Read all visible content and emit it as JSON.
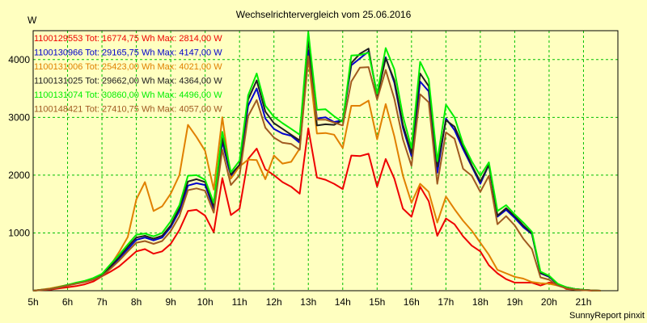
{
  "chart_data": {
    "type": "line",
    "title": "Wechselrichtervergleich vom 25.06.2016",
    "ylabel": "W",
    "xlabel": "",
    "footer": "SunnyReport pinxit",
    "ylim": [
      0,
      4500
    ],
    "xlim": [
      5,
      22
    ],
    "grid": true,
    "legend_position": "top-left",
    "y_ticks": [
      "1000",
      "2000",
      "3000",
      "4000"
    ],
    "y_tick_values": [
      1000,
      2000,
      3000,
      4000
    ],
    "x_ticks": [
      "5h",
      "6h",
      "7h",
      "8h",
      "9h",
      "10h",
      "11h",
      "12h",
      "13h",
      "14h",
      "15h",
      "16h",
      "17h",
      "18h",
      "19h",
      "20h",
      "21h"
    ],
    "x_tick_values": [
      5,
      6,
      7,
      8,
      9,
      10,
      11,
      12,
      13,
      14,
      15,
      16,
      17,
      18,
      19,
      20,
      21
    ],
    "x": [
      5,
      5.25,
      5.5,
      5.75,
      6,
      6.25,
      6.5,
      6.75,
      7,
      7.25,
      7.5,
      7.75,
      8,
      8.25,
      8.5,
      8.75,
      9,
      9.25,
      9.5,
      9.75,
      10,
      10.25,
      10.5,
      10.75,
      11,
      11.25,
      11.5,
      11.75,
      12,
      12.25,
      12.5,
      12.75,
      13,
      13.25,
      13.5,
      13.75,
      14,
      14.25,
      14.5,
      14.75,
      15,
      15.25,
      15.5,
      15.75,
      16,
      16.25,
      16.5,
      16.75,
      17,
      17.25,
      17.5,
      17.75,
      18,
      18.25,
      18.5,
      18.75,
      19,
      19.25,
      19.5,
      19.75,
      20,
      20.25,
      20.5,
      20.75,
      21,
      21.25,
      21.5
    ],
    "series": [
      {
        "name": "1100129553",
        "legend": "1100129553 Tot: 16774,75 Wh Max: 2814,00 W",
        "color": "#ee0000",
        "values": [
          0,
          10,
          20,
          40,
          60,
          80,
          110,
          160,
          250,
          330,
          420,
          550,
          680,
          720,
          640,
          680,
          810,
          1050,
          1380,
          1400,
          1300,
          1010,
          1950,
          1310,
          1420,
          2280,
          2460,
          2100,
          2000,
          1880,
          1800,
          1680,
          2810,
          1960,
          1920,
          1850,
          1760,
          2340,
          2330,
          2370,
          1800,
          2280,
          1940,
          1420,
          1280,
          1800,
          1550,
          950,
          1250,
          1150,
          940,
          780,
          680,
          440,
          300,
          200,
          140,
          140,
          140,
          90,
          140,
          120,
          30,
          20,
          10,
          0,
          0
        ]
      },
      {
        "name": "1100130966",
        "legend": "1100130966 Tot: 29165,75 Wh Max: 4147,00 W",
        "color": "#0000cc",
        "values": [
          0,
          15,
          30,
          60,
          100,
          130,
          160,
          200,
          260,
          400,
          560,
          720,
          880,
          920,
          870,
          920,
          1100,
          1380,
          1820,
          1860,
          1830,
          1420,
          2580,
          1970,
          2150,
          3200,
          3500,
          2980,
          2800,
          2720,
          2680,
          2560,
          4160,
          2980,
          3000,
          2920,
          2950,
          3900,
          4020,
          4140,
          3400,
          4040,
          3600,
          2820,
          2330,
          3620,
          3450,
          2040,
          2980,
          2780,
          2450,
          2150,
          1850,
          2180,
          1280,
          1400,
          1260,
          1100,
          980,
          300,
          240,
          110,
          60,
          30,
          15,
          5,
          0
        ]
      },
      {
        "name": "1100131006",
        "legend": "1100131006 Tot: 25423,00 Wh Max: 4021,00 W",
        "color": "#e08000",
        "values": [
          0,
          20,
          40,
          70,
          100,
          130,
          170,
          210,
          260,
          440,
          670,
          930,
          1580,
          1880,
          1380,
          1460,
          1680,
          2000,
          2870,
          2660,
          2420,
          1750,
          3000,
          1940,
          2150,
          2270,
          2260,
          1930,
          2340,
          2200,
          2230,
          2460,
          4020,
          2720,
          2730,
          2700,
          2470,
          3200,
          3200,
          3290,
          2620,
          3230,
          2670,
          1990,
          1520,
          1850,
          1710,
          1180,
          1630,
          1410,
          1210,
          1040,
          830,
          620,
          360,
          300,
          240,
          210,
          150,
          130,
          120,
          90,
          40,
          20,
          10,
          5,
          0
        ]
      },
      {
        "name": "1100131025",
        "legend": "1100131025 Tot: 29662,00 Wh Max: 4364,00 W",
        "color": "#202020",
        "values": [
          0,
          15,
          30,
          60,
          100,
          130,
          160,
          200,
          270,
          420,
          580,
          760,
          920,
          950,
          900,
          950,
          1130,
          1430,
          1890,
          1930,
          1880,
          1450,
          2640,
          2010,
          2180,
          3310,
          3640,
          3100,
          2900,
          2800,
          2700,
          2600,
          4360,
          2860,
          2880,
          2870,
          2950,
          3940,
          4100,
          4190,
          3360,
          4020,
          3640,
          2870,
          2380,
          3760,
          3540,
          2150,
          2950,
          2840,
          2500,
          2170,
          1890,
          2180,
          1300,
          1430,
          1290,
          1130,
          990,
          310,
          250,
          110,
          60,
          30,
          15,
          5,
          0
        ]
      },
      {
        "name": "1100131074",
        "legend": "1100131074 Tot: 30860,00 Wh Max: 4496,00 W",
        "color": "#00ee00",
        "values": [
          0,
          15,
          30,
          60,
          100,
          140,
          170,
          220,
          290,
          460,
          620,
          800,
          970,
          990,
          940,
          1000,
          1200,
          1480,
          1990,
          2000,
          1920,
          1520,
          2750,
          2050,
          2250,
          3380,
          3760,
          3200,
          3010,
          2900,
          2800,
          2700,
          4480,
          3130,
          3140,
          3020,
          2920,
          4070,
          4080,
          4120,
          3410,
          4200,
          3830,
          3020,
          2470,
          3960,
          3660,
          2240,
          3220,
          3000,
          2540,
          2240,
          1990,
          2220,
          1380,
          1480,
          1320,
          1180,
          1020,
          330,
          260,
          120,
          60,
          30,
          15,
          5,
          0
        ]
      },
      {
        "name": "1100148421",
        "legend": "1100148421 Tot: 27410,75 Wh Max: 4057,00 W",
        "color": "#a05a20",
        "values": [
          0,
          15,
          30,
          55,
          90,
          120,
          150,
          190,
          250,
          380,
          520,
          680,
          830,
          860,
          810,
          860,
          1030,
          1290,
          1740,
          1770,
          1730,
          1350,
          2440,
          1830,
          2000,
          3020,
          3300,
          2820,
          2650,
          2560,
          2540,
          2440,
          4060,
          2960,
          2960,
          2910,
          2860,
          3620,
          3860,
          3870,
          3310,
          3820,
          3320,
          2620,
          2160,
          3400,
          3260,
          1850,
          2740,
          2630,
          2110,
          1990,
          1710,
          1990,
          1150,
          1290,
          1130,
          900,
          720,
          230,
          190,
          90,
          40,
          20,
          10,
          5,
          0
        ]
      }
    ]
  }
}
